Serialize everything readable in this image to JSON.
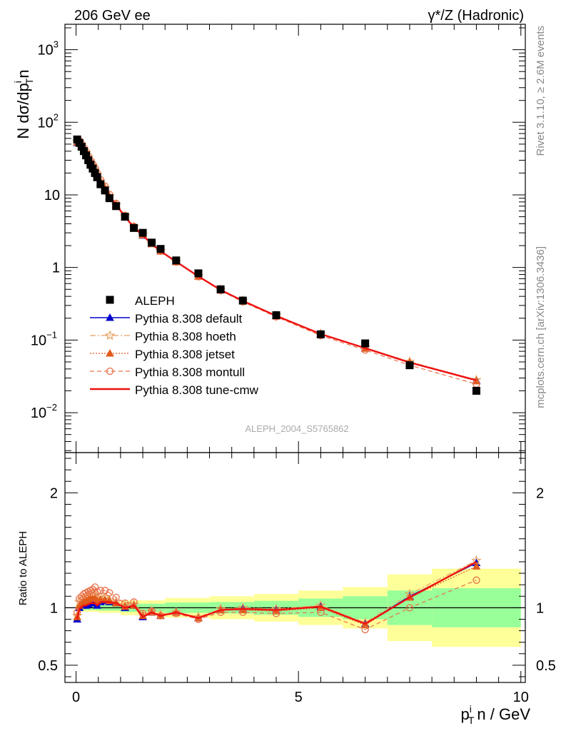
{
  "chart_data": {
    "type": "scatter",
    "title_left": "206 GeV ee",
    "title_right": "γ*/Z (Hadronic)",
    "side_text_top": "Rivet 3.1.10, ≥ 2.6M events",
    "side_text_bottom": "mcplots.cern.ch [arXiv:1306.3436]",
    "watermark": "ALEPH_2004_S5765862",
    "ylabel_top": "N dσ/dp",
    "ylabel_top_sub": "T",
    "ylabel_top_sup": "i",
    "ylabel_top_tail": "n",
    "ylabel_bottom": "Ratio to ALEPH",
    "xlabel_main": "p",
    "xlabel_sub": "T",
    "xlabel_sup": "i",
    "xlabel_tail": "n / GeV",
    "xlim": [
      -0.25,
      10.1
    ],
    "ylim_top_log10": [
      -2.55,
      3.35
    ],
    "ylim_ratio": [
      0.35,
      2.35
    ],
    "x_ticks": [
      "0",
      "5",
      "10"
    ],
    "x_tick_values": [
      0,
      5,
      10
    ],
    "y_ticks_top": [
      {
        "v": 1000,
        "base": "10",
        "exp": "3"
      },
      {
        "v": 100,
        "base": "10",
        "exp": "2"
      },
      {
        "v": 10,
        "base": "10",
        "exp": ""
      },
      {
        "v": 1,
        "base": "1",
        "exp": ""
      },
      {
        "v": 0.1,
        "base": "10",
        "exp": "−1"
      },
      {
        "v": 0.01,
        "base": "10",
        "exp": "−2"
      }
    ],
    "y_ticks_ratio": [
      "0.5",
      "1",
      "2"
    ],
    "y_tick_values_ratio": [
      0.5,
      1,
      2
    ],
    "data": {
      "name": "ALEPH",
      "x": [
        0.025,
        0.075,
        0.125,
        0.175,
        0.225,
        0.275,
        0.325,
        0.375,
        0.425,
        0.475,
        0.55,
        0.65,
        0.75,
        0.9,
        1.1,
        1.3,
        1.5,
        1.7,
        1.9,
        2.25,
        2.75,
        3.25,
        3.75,
        4.5,
        5.5,
        6.5,
        7.5,
        9.0
      ],
      "y": [
        58,
        52,
        46,
        40,
        35,
        30,
        26,
        23,
        20,
        17.5,
        14,
        11.5,
        9,
        7,
        5,
        3.5,
        3.0,
        2.2,
        1.8,
        1.25,
        0.83,
        0.5,
        0.35,
        0.22,
        0.12,
        0.09,
        0.045,
        0.02
      ]
    },
    "bands": [
      {
        "x0": 0.0,
        "x1": 0.5,
        "inner": 0.02,
        "outer": 0.035
      },
      {
        "x0": 0.5,
        "x1": 1.0,
        "inner": 0.025,
        "outer": 0.045
      },
      {
        "x0": 1.0,
        "x1": 2.0,
        "inner": 0.035,
        "outer": 0.065
      },
      {
        "x0": 2.0,
        "x1": 3.0,
        "inner": 0.045,
        "outer": 0.085
      },
      {
        "x0": 3.0,
        "x1": 4.0,
        "inner": 0.05,
        "outer": 0.1
      },
      {
        "x0": 4.0,
        "x1": 5.0,
        "inner": 0.06,
        "outer": 0.12
      },
      {
        "x0": 5.0,
        "x1": 6.0,
        "inner": 0.08,
        "outer": 0.15
      },
      {
        "x0": 6.0,
        "x1": 7.0,
        "inner": 0.1,
        "outer": 0.18
      },
      {
        "x0": 7.0,
        "x1": 8.0,
        "inner": 0.15,
        "outer": 0.29
      },
      {
        "x0": 8.0,
        "x1": 10.0,
        "inner": 0.17,
        "outer": 0.34
      }
    ],
    "series": [
      {
        "name": "Pythia 8.308 default",
        "color": "#0000cc",
        "dash": "",
        "marker": "triangle",
        "width": 1.4,
        "ratio": [
          0.9,
          1.0,
          1.02,
          1.02,
          1.02,
          1.03,
          1.04,
          1.04,
          1.04,
          1.02,
          1.05,
          1.06,
          1.05,
          1.04,
          1.0,
          1.02,
          0.92,
          0.96,
          0.93,
          0.96,
          0.91,
          0.98,
          0.99,
          0.98,
          1.01,
          0.86,
          1.1,
          1.39
        ]
      },
      {
        "name": "Pythia 8.308 hoeth",
        "color": "#e8a060",
        "dash": "8,3,2,3",
        "marker": "star",
        "width": 1.2,
        "ratio": [
          0.93,
          1.05,
          1.07,
          1.08,
          1.1,
          1.11,
          1.12,
          1.12,
          1.11,
          1.09,
          1.1,
          1.09,
          1.07,
          1.05,
          1.02,
          1.03,
          0.94,
          0.97,
          0.94,
          0.96,
          0.92,
          0.99,
          1.0,
          0.99,
          1.02,
          0.87,
          1.12,
          1.41
        ]
      },
      {
        "name": "Pythia 8.308 jetset",
        "color": "#e05a1a",
        "dash": "2,2",
        "marker": "triangle",
        "width": 1.2,
        "ratio": [
          0.92,
          1.02,
          1.04,
          1.05,
          1.06,
          1.07,
          1.08,
          1.08,
          1.08,
          1.06,
          1.07,
          1.07,
          1.06,
          1.04,
          1.01,
          1.02,
          0.93,
          0.96,
          0.93,
          0.96,
          0.91,
          0.98,
          0.98,
          0.97,
          1.0,
          0.85,
          1.09,
          1.36
        ]
      },
      {
        "name": "Pythia 8.308 montull",
        "color": "#e8704a",
        "dash": "6,4",
        "marker": "circle",
        "width": 1.2,
        "ratio": [
          0.96,
          1.08,
          1.1,
          1.12,
          1.13,
          1.14,
          1.15,
          1.16,
          1.18,
          1.14,
          1.15,
          1.15,
          1.13,
          1.09,
          1.04,
          1.05,
          0.95,
          0.97,
          0.93,
          0.95,
          0.9,
          0.96,
          0.96,
          0.95,
          0.96,
          0.81,
          1.0,
          1.24
        ]
      },
      {
        "name": "Pythia 8.308 tune-cmw",
        "color": "#ee1111",
        "dash": "",
        "marker": "none",
        "width": 2.4,
        "ratio": [
          0.9,
          0.99,
          1.01,
          1.02,
          1.02,
          1.03,
          1.04,
          1.04,
          1.04,
          1.02,
          1.05,
          1.05,
          1.05,
          1.04,
          1.0,
          1.02,
          0.92,
          0.96,
          0.93,
          0.96,
          0.91,
          0.98,
          0.99,
          0.98,
          1.01,
          0.86,
          1.09,
          1.4
        ]
      }
    ]
  }
}
